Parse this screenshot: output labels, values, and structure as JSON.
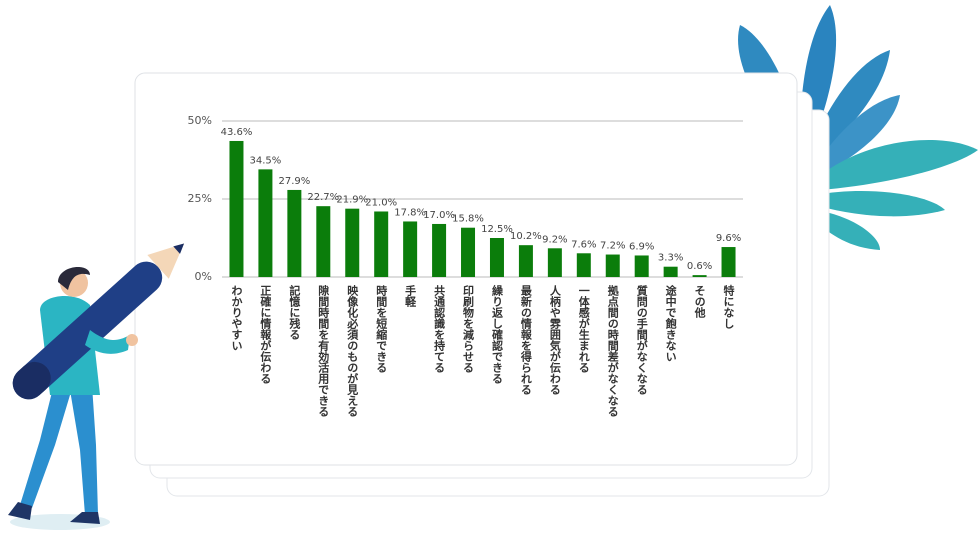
{
  "chart_data": {
    "type": "bar",
    "categories": [
      "わかりやすい",
      "正確に情報が伝わる",
      "記憶に残る",
      "隙間時間を有効活用できる",
      "映像化必須のものが見える",
      "時間を短縮できる",
      "手軽",
      "共通認識を持てる",
      "印刷物を減らせる",
      "繰り返し確認できる",
      "最新の情報を得られる",
      "人柄や雰囲気が伝わる",
      "一体感が生まれる",
      "拠点間の時間差がなくなる",
      "質問の手間がなくなる",
      "途中で飽きない",
      "その他",
      "特になし"
    ],
    "values": [
      43.6,
      34.5,
      27.9,
      22.7,
      21.9,
      21.0,
      17.8,
      17.0,
      15.8,
      12.5,
      10.2,
      9.2,
      7.6,
      7.2,
      6.9,
      3.3,
      0.6,
      9.6
    ],
    "value_labels": [
      "43.6%",
      "34.5%",
      "27.9%",
      "22.7%",
      "21.9%",
      "21.0%",
      "17.8%",
      "17.0%",
      "15.8%",
      "12.5%",
      "10.2%",
      "9.2%",
      "7.6%",
      "7.2%",
      "6.9%",
      "3.3%",
      "0.6%",
      "9.6%"
    ],
    "color": "#0b7d0b",
    "ylim": [
      0,
      50
    ],
    "yticks": [
      {
        "value": 0,
        "label": "0%"
      },
      {
        "value": 25,
        "label": "25%"
      },
      {
        "value": 50,
        "label": "50%"
      }
    ],
    "grid": true
  }
}
